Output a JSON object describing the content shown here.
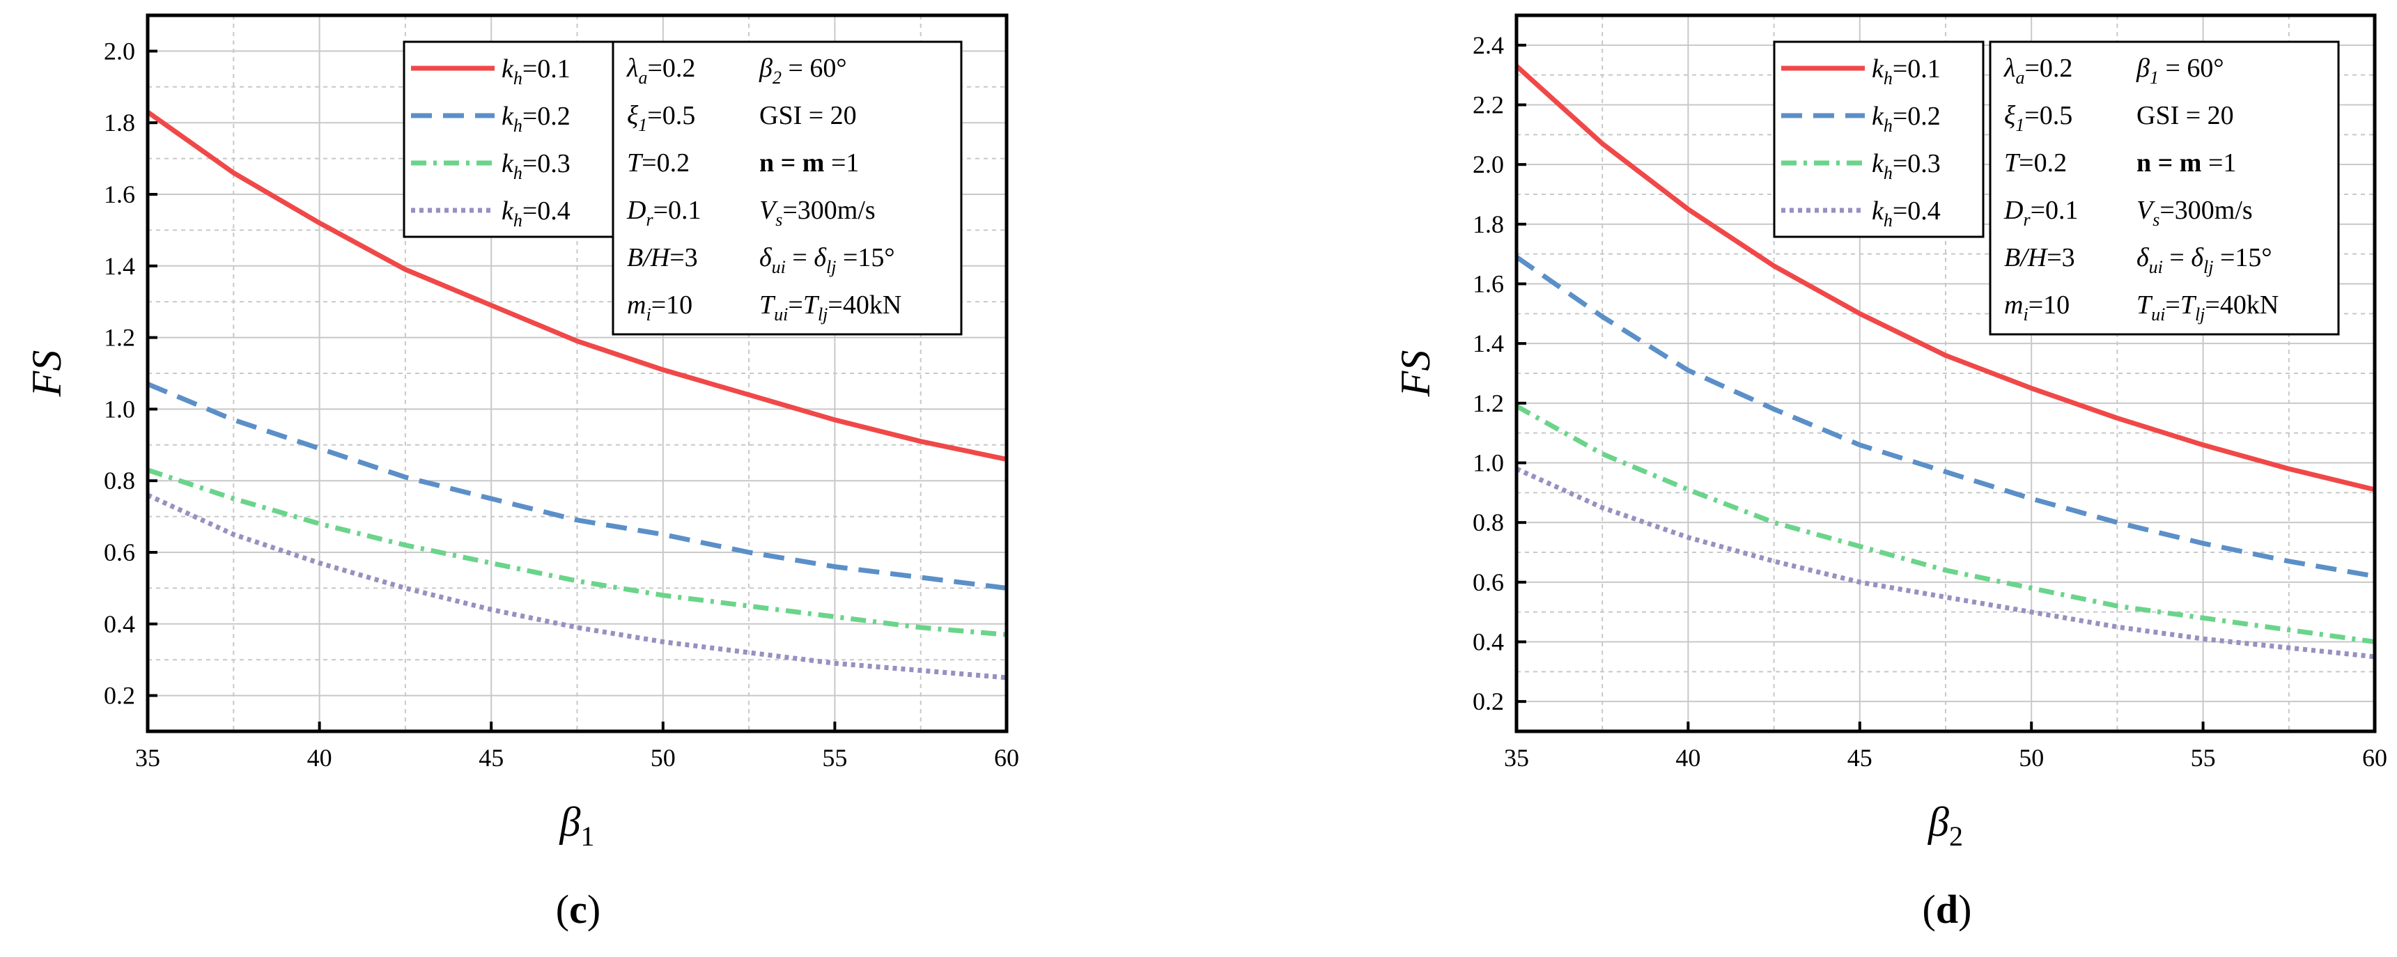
{
  "chart_data": [
    {
      "type": "line",
      "panel_label": "c",
      "xlabel": "β",
      "xlabel_sub": "1",
      "ylabel": "FS",
      "xlim": [
        35,
        60
      ],
      "ylim": [
        0.1,
        2.1
      ],
      "xticks": [
        "35",
        "40",
        "45",
        "50",
        "55",
        "60"
      ],
      "yticks": [
        "0.2",
        "0.4",
        "0.6",
        "0.8",
        "1.0",
        "1.2",
        "1.4",
        "1.6",
        "1.8",
        "2.0"
      ],
      "grid": true,
      "legend_position": "top-center",
      "x": [
        35,
        37.5,
        40,
        42.5,
        45,
        47.5,
        50,
        52.5,
        55,
        57.5,
        60
      ],
      "series": [
        {
          "name_main": "k",
          "name_sub": "h",
          "name_rest": "=0.1",
          "color": "#f04848",
          "dash": "solid",
          "values": [
            1.83,
            1.66,
            1.52,
            1.39,
            1.29,
            1.19,
            1.11,
            1.04,
            0.97,
            0.91,
            0.86
          ]
        },
        {
          "name_main": "k",
          "name_sub": "h",
          "name_rest": "=0.2",
          "color": "#5b8fc8",
          "dash": "long-dash",
          "values": [
            1.07,
            0.97,
            0.89,
            0.81,
            0.75,
            0.69,
            0.65,
            0.6,
            0.56,
            0.53,
            0.5
          ]
        },
        {
          "name_main": "k",
          "name_sub": "h",
          "name_rest": "=0.3",
          "color": "#6ad48a",
          "dash": "dash-dot",
          "values": [
            0.83,
            0.75,
            0.68,
            0.62,
            0.57,
            0.52,
            0.48,
            0.45,
            0.42,
            0.39,
            0.37
          ]
        },
        {
          "name_main": "k",
          "name_sub": "h",
          "name_rest": "=0.4",
          "color": "#9890c0",
          "dash": "dot",
          "values": [
            0.76,
            0.65,
            0.57,
            0.5,
            0.44,
            0.39,
            0.35,
            0.32,
            0.29,
            0.27,
            0.25
          ]
        }
      ],
      "params": [
        [
          {
            "m": "λ",
            "s": "a",
            "r": "=0.2"
          },
          {
            "m": "β",
            "s": "2",
            "r": " = 60°"
          }
        ],
        [
          {
            "m": "ξ",
            "s": "1",
            "r": "=0.5"
          },
          {
            "plain": "GSI = 20"
          }
        ],
        [
          {
            "m": "T",
            "s": "",
            "r": "=0.2"
          },
          {
            "bold": "n = m",
            "r": " =1"
          }
        ],
        [
          {
            "m": "D",
            "s": "r",
            "r": "=0.1"
          },
          {
            "m": "V",
            "s": "s",
            "r": "=300m/s"
          }
        ],
        [
          {
            "m": "B/H",
            "s": "",
            "r": "=3"
          },
          {
            "m": "δ",
            "s": "ui",
            "r": " = ",
            "m2": "δ",
            "s2": "lj",
            "r2": " =15°"
          }
        ],
        [
          {
            "m": "m",
            "s": "i",
            "r": "=10"
          },
          {
            "m": "T",
            "s": "ui",
            "r": "=",
            "m2": "T",
            "s2": "lj",
            "r2": "=40kN"
          }
        ]
      ]
    },
    {
      "type": "line",
      "panel_label": "d",
      "xlabel": "β",
      "xlabel_sub": "2",
      "ylabel": "FS",
      "xlim": [
        35,
        60
      ],
      "ylim": [
        0.1,
        2.5
      ],
      "xticks": [
        "35",
        "40",
        "45",
        "50",
        "55",
        "60"
      ],
      "yticks": [
        "0.2",
        "0.4",
        "0.6",
        "0.8",
        "1.0",
        "1.2",
        "1.4",
        "1.6",
        "1.8",
        "2.0",
        "2.2",
        "2.4"
      ],
      "grid": true,
      "legend_position": "top-center",
      "x": [
        35,
        37.5,
        40,
        42.5,
        45,
        47.5,
        50,
        52.5,
        55,
        57.5,
        60
      ],
      "series": [
        {
          "name_main": "k",
          "name_sub": "h",
          "name_rest": "=0.1",
          "color": "#f04848",
          "dash": "solid",
          "values": [
            2.33,
            2.07,
            1.85,
            1.66,
            1.5,
            1.36,
            1.25,
            1.15,
            1.06,
            0.98,
            0.91
          ]
        },
        {
          "name_main": "k",
          "name_sub": "h",
          "name_rest": "=0.2",
          "color": "#5b8fc8",
          "dash": "long-dash",
          "values": [
            1.69,
            1.49,
            1.31,
            1.18,
            1.06,
            0.97,
            0.88,
            0.8,
            0.73,
            0.67,
            0.62
          ]
        },
        {
          "name_main": "k",
          "name_sub": "h",
          "name_rest": "=0.3",
          "color": "#6ad48a",
          "dash": "dash-dot",
          "values": [
            1.19,
            1.03,
            0.91,
            0.8,
            0.72,
            0.64,
            0.58,
            0.52,
            0.48,
            0.44,
            0.4
          ]
        },
        {
          "name_main": "k",
          "name_sub": "h",
          "name_rest": "=0.4",
          "color": "#9890c0",
          "dash": "dot",
          "values": [
            0.98,
            0.85,
            0.75,
            0.67,
            0.6,
            0.55,
            0.5,
            0.45,
            0.41,
            0.38,
            0.35
          ]
        }
      ],
      "params": [
        [
          {
            "m": "λ",
            "s": "a",
            "r": "=0.2"
          },
          {
            "m": "β",
            "s": "1",
            "r": " = 60°"
          }
        ],
        [
          {
            "m": "ξ",
            "s": "1",
            "r": "=0.5"
          },
          {
            "plain": "GSI = 20"
          }
        ],
        [
          {
            "m": "T",
            "s": "",
            "r": "=0.2"
          },
          {
            "bold": "n = m",
            "r": " =1"
          }
        ],
        [
          {
            "m": "D",
            "s": "r",
            "r": "=0.1"
          },
          {
            "m": "V",
            "s": "s",
            "r": "=300m/s"
          }
        ],
        [
          {
            "m": "B/H",
            "s": "",
            "r": "=3"
          },
          {
            "m": "δ",
            "s": "ui",
            "r": " = ",
            "m2": "δ",
            "s2": "lj",
            "r2": " =15°"
          }
        ],
        [
          {
            "m": "m",
            "s": "i",
            "r": "=10"
          },
          {
            "m": "T",
            "s": "ui",
            "r": "=",
            "m2": "T",
            "s2": "lj",
            "r2": "=40kN"
          }
        ]
      ]
    }
  ]
}
